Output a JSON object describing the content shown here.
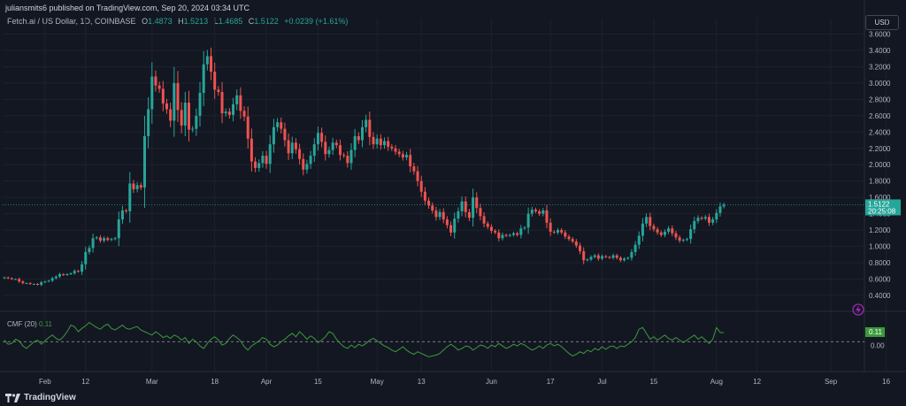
{
  "header": {
    "published": "juliansmits6 published on TradingView.com, Sep 20, 2024 03:34 UTC"
  },
  "legend": {
    "symbol": "Fetch.ai / US Dollar, 1D, COINBASE",
    "o_label": "O",
    "o": "1.4873",
    "h_label": "H",
    "h": "1.5213",
    "l_label": "L",
    "l": "1.4685",
    "c_label": "C",
    "c": "1.5122",
    "change": "+0.0239 (+1.61%)"
  },
  "currency_button": "USD",
  "price_label": {
    "value": "1.5122",
    "countdown": "20:25:08"
  },
  "indicator": {
    "name": "CMF (20)",
    "value": "0.11",
    "badge": "0.11",
    "zero_label": "0.00"
  },
  "footer": {
    "brand": "TradingView"
  },
  "colors": {
    "up": "#26a69a",
    "down": "#ef5350",
    "cmf": "#3c9a3c",
    "bg": "#131722",
    "grid": "#1e222d"
  },
  "chart_data": {
    "type": "candlestick",
    "title": "Fetch.ai / US Dollar, 1D, COINBASE",
    "y_ticks": [
      "3.6000",
      "3.4000",
      "3.2000",
      "3.0000",
      "2.8000",
      "2.6000",
      "2.4000",
      "2.2000",
      "2.0000",
      "1.8000",
      "1.6000",
      "1.4000",
      "1.2000",
      "1.0000",
      "0.8000",
      "0.6000",
      "0.4000"
    ],
    "ylim": [
      0.28,
      3.66
    ],
    "x_ticks": [
      "Feb",
      "12",
      "Mar",
      "18",
      "Apr",
      "15",
      "May",
      "13",
      "Jun",
      "17",
      "Jul",
      "15",
      "Aug",
      "12",
      "Sep",
      "16"
    ],
    "x_tick_dates": [
      "2024-02-01",
      "2024-02-12",
      "2024-03-01",
      "2024-03-18",
      "2024-04-01",
      "2024-04-15",
      "2024-05-01",
      "2024-05-13",
      "2024-06-01",
      "2024-06-17",
      "2024-07-01",
      "2024-07-15",
      "2024-08-01",
      "2024-08-12",
      "2024-09-01",
      "2024-09-16"
    ],
    "start_date": "2024-01-21",
    "close": [
      0.62,
      0.61,
      0.6,
      0.6,
      0.57,
      0.55,
      0.55,
      0.54,
      0.54,
      0.53,
      0.56,
      0.57,
      0.58,
      0.61,
      0.63,
      0.66,
      0.65,
      0.66,
      0.67,
      0.7,
      0.69,
      0.78,
      0.93,
      0.98,
      1.1,
      1.11,
      1.07,
      1.1,
      1.08,
      1.09,
      1.1,
      1.33,
      1.44,
      1.43,
      1.77,
      1.7,
      1.75,
      1.72,
      2.35,
      2.68,
      3.08,
      2.97,
      2.93,
      2.75,
      2.68,
      2.54,
      3.0,
      2.67,
      2.48,
      2.76,
      2.43,
      2.44,
      2.6,
      2.88,
      3.23,
      3.33,
      3.14,
      2.92,
      2.89,
      2.63,
      2.65,
      2.61,
      2.74,
      2.85,
      2.66,
      2.59,
      2.32,
      2.04,
      1.96,
      2.02,
      2.11,
      2.01,
      2.25,
      2.46,
      2.52,
      2.44,
      2.3,
      2.14,
      2.27,
      2.19,
      2.07,
      1.94,
      2.01,
      2.11,
      2.25,
      2.39,
      2.28,
      2.13,
      2.18,
      2.27,
      2.24,
      2.12,
      2.11,
      2.02,
      2.18,
      2.35,
      2.3,
      2.46,
      2.55,
      2.34,
      2.25,
      2.32,
      2.24,
      2.29,
      2.22,
      2.2,
      2.16,
      2.13,
      2.09,
      2.12,
      1.98,
      1.92,
      1.8,
      1.67,
      1.56,
      1.5,
      1.44,
      1.36,
      1.42,
      1.33,
      1.26,
      1.17,
      1.34,
      1.43,
      1.55,
      1.42,
      1.35,
      1.6,
      1.47,
      1.37,
      1.28,
      1.24,
      1.19,
      1.17,
      1.1,
      1.14,
      1.13,
      1.14,
      1.16,
      1.14,
      1.22,
      1.23,
      1.4,
      1.45,
      1.43,
      1.4,
      1.44,
      1.29,
      1.18,
      1.17,
      1.2,
      1.17,
      1.12,
      1.09,
      1.06,
      1.01,
      0.94,
      0.83,
      0.84,
      0.87,
      0.89,
      0.85,
      0.88,
      0.87,
      0.86,
      0.89,
      0.86,
      0.83,
      0.85,
      0.86,
      0.93,
      1.02,
      1.13,
      1.28,
      1.36,
      1.25,
      1.21,
      1.17,
      1.14,
      1.18,
      1.22,
      1.16,
      1.11,
      1.07,
      1.08,
      1.09,
      1.21,
      1.31,
      1.35,
      1.34,
      1.36,
      1.29,
      1.33,
      1.41,
      1.49,
      1.51
    ],
    "cmf": [
      0.02,
      -0.03,
      -0.02,
      0.03,
      0.01,
      -0.05,
      -0.08,
      -0.04,
      0.0,
      0.02,
      -0.03,
      0.01,
      0.05,
      0.08,
      0.04,
      0.02,
      0.06,
      0.12,
      0.2,
      0.18,
      0.12,
      0.16,
      0.19,
      0.23,
      0.2,
      0.17,
      0.15,
      0.19,
      0.21,
      0.16,
      0.14,
      0.17,
      0.2,
      0.16,
      0.15,
      0.17,
      0.18,
      0.14,
      0.12,
      0.1,
      0.08,
      0.12,
      0.09,
      0.05,
      0.07,
      0.04,
      0.08,
      0.06,
      0.02,
      0.05,
      -0.02,
      0.03,
      0.0,
      -0.05,
      -0.08,
      -0.02,
      0.03,
      0.06,
      0.02,
      -0.04,
      -0.02,
      0.04,
      0.08,
      0.05,
      0.01,
      -0.06,
      -0.1,
      -0.05,
      -0.02,
      0.01,
      0.05,
      0.03,
      -0.03,
      -0.06,
      -0.04,
      0.0,
      0.03,
      0.07,
      0.1,
      0.06,
      0.12,
      0.08,
      0.03,
      0.07,
      0.04,
      -0.01,
      0.02,
      0.06,
      0.12,
      0.1,
      0.03,
      -0.02,
      -0.06,
      -0.08,
      -0.04,
      -0.07,
      -0.03,
      -0.05,
      -0.02,
      0.02,
      0.04,
      0.01,
      -0.02,
      -0.05,
      -0.07,
      -0.1,
      -0.12,
      -0.09,
      -0.06,
      -0.1,
      -0.13,
      -0.15,
      -0.12,
      -0.14,
      -0.16,
      -0.18,
      -0.17,
      -0.16,
      -0.14,
      -0.1,
      -0.06,
      -0.03,
      -0.06,
      -0.1,
      -0.08,
      -0.05,
      -0.06,
      -0.1,
      -0.07,
      -0.04,
      -0.05,
      -0.08,
      -0.04,
      -0.06,
      -0.02,
      -0.05,
      -0.08,
      -0.06,
      -0.03,
      -0.05,
      -0.02,
      -0.04,
      -0.07,
      -0.1,
      -0.08,
      -0.05,
      -0.08,
      -0.04,
      -0.02,
      -0.05,
      -0.03,
      -0.06,
      -0.1,
      -0.14,
      -0.17,
      -0.15,
      -0.12,
      -0.14,
      -0.1,
      -0.12,
      -0.08,
      -0.1,
      -0.06,
      -0.09,
      -0.06,
      -0.05,
      -0.08,
      -0.05,
      -0.06,
      -0.03,
      0.0,
      0.05,
      0.15,
      0.17,
      0.1,
      0.03,
      0.06,
      0.02,
      0.05,
      0.08,
      0.04,
      0.02,
      0.05,
      0.02,
      -0.01,
      0.02,
      0.05,
      0.08,
      0.03,
      0.06,
      0.02,
      -0.02,
      0.03,
      0.17,
      0.11,
      0.11
    ]
  }
}
